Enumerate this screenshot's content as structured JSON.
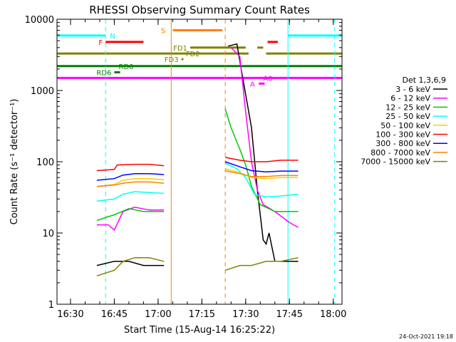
{
  "chart_data": {
    "type": "line",
    "title": "RHESSI Observing Summary Count Rates",
    "xlabel": "Start Time (15-Aug-14 16:25:22)",
    "ylabel": "Count Rate (s⁻¹ detector⁻¹)",
    "xlim": [
      "16:25:22",
      "18:03:00"
    ],
    "ylim": [
      1,
      10000
    ],
    "log_y": true,
    "x_ticks": [
      "16:30",
      "16:45",
      "17:00",
      "17:15",
      "17:30",
      "17:45",
      "18:00"
    ],
    "y_ticks": [
      "1",
      "10",
      "100",
      "1000",
      "10000"
    ],
    "legend_title": "Det 1,3,6,9",
    "legend_position": "right",
    "footer_date": "24-Oct-2021 19:18",
    "series": [
      {
        "name": "3 - 6 keV",
        "color": "#000000",
        "segments": [
          [
            [
              "16:39",
              "3.5"
            ],
            [
              "16:45",
              "4"
            ],
            [
              "16:50",
              "4"
            ],
            [
              "16:55",
              "3.5"
            ],
            [
              "17:02",
              "3.5"
            ]
          ],
          [
            [
              "17:24",
              "4200"
            ],
            [
              "17:27",
              "4500"
            ],
            [
              "17:29",
              "1500"
            ],
            [
              "17:32",
              "300"
            ],
            [
              "17:34",
              "40"
            ],
            [
              "17:36",
              "8"
            ],
            [
              "17:37",
              "7"
            ],
            [
              "17:38",
              "10"
            ],
            [
              "17:40",
              "4"
            ],
            [
              "17:45",
              "4"
            ],
            [
              "17:48",
              "4"
            ]
          ]
        ]
      },
      {
        "name": "6 - 12 keV",
        "color": "#ff00ff",
        "segments": [
          [
            [
              "16:39",
              "13"
            ],
            [
              "16:43",
              "13"
            ],
            [
              "16:45",
              "11"
            ],
            [
              "16:48",
              "20"
            ],
            [
              "16:52",
              "23"
            ],
            [
              "16:57",
              "21"
            ],
            [
              "17:02",
              "21"
            ]
          ],
          [
            [
              "17:25",
              "4000"
            ],
            [
              "17:28",
              "3000"
            ],
            [
              "17:30",
              "500"
            ],
            [
              "17:32",
              "100"
            ],
            [
              "17:34",
              "40"
            ],
            [
              "17:36",
              "25"
            ],
            [
              "17:40",
              "20"
            ],
            [
              "17:45",
              "14"
            ],
            [
              "17:48",
              "12"
            ]
          ]
        ]
      },
      {
        "name": "12 - 25 keV",
        "color": "#00cc00",
        "segments": [
          [
            [
              "16:39",
              "15"
            ],
            [
              "16:43",
              "17"
            ],
            [
              "16:45",
              "18"
            ],
            [
              "16:50",
              "22"
            ],
            [
              "16:55",
              "20"
            ],
            [
              "17:02",
              "20"
            ]
          ],
          [
            [
              "17:23",
              "550"
            ],
            [
              "17:25",
              "300"
            ],
            [
              "17:28",
              "150"
            ],
            [
              "17:30",
              "90"
            ],
            [
              "17:32",
              "45"
            ],
            [
              "17:35",
              "25"
            ],
            [
              "17:40",
              "20"
            ],
            [
              "17:45",
              "20"
            ],
            [
              "17:48",
              "20"
            ]
          ]
        ]
      },
      {
        "name": "25 - 50 keV",
        "color": "#00ffff",
        "segments": [
          [
            [
              "16:39",
              "28"
            ],
            [
              "16:45",
              "30"
            ],
            [
              "16:48",
              "35"
            ],
            [
              "16:52",
              "38"
            ],
            [
              "16:57",
              "37"
            ],
            [
              "17:02",
              "36"
            ]
          ],
          [
            [
              "17:23",
              "95"
            ],
            [
              "17:27",
              "80"
            ],
            [
              "17:30",
              "60"
            ],
            [
              "17:33",
              "35"
            ],
            [
              "17:37",
              "32"
            ],
            [
              "17:42",
              "33"
            ],
            [
              "17:48",
              "35"
            ]
          ]
        ]
      },
      {
        "name": "50 - 100 keV",
        "color": "#ffcc00",
        "segments": [
          [
            [
              "16:39",
              "45"
            ],
            [
              "16:45",
              "48"
            ],
            [
              "16:48",
              "55"
            ],
            [
              "16:52",
              "58"
            ],
            [
              "16:57",
              "58"
            ],
            [
              "17:02",
              "56"
            ]
          ],
          [
            [
              "17:23",
              "80"
            ],
            [
              "17:28",
              "70"
            ],
            [
              "17:32",
              "60"
            ],
            [
              "17:37",
              "58"
            ],
            [
              "17:42",
              "60"
            ],
            [
              "17:48",
              "60"
            ]
          ]
        ]
      },
      {
        "name": "100 - 300 keV",
        "color": "#ff0000",
        "segments": [
          [
            [
              "16:39",
              "75"
            ],
            [
              "16:45",
              "78"
            ],
            [
              "16:46",
              "90"
            ],
            [
              "16:52",
              "92"
            ],
            [
              "16:57",
              "92"
            ],
            [
              "17:02",
              "88"
            ]
          ],
          [
            [
              "17:23",
              "115"
            ],
            [
              "17:28",
              "105"
            ],
            [
              "17:32",
              "100"
            ],
            [
              "17:37",
              "100"
            ],
            [
              "17:42",
              "105"
            ],
            [
              "17:48",
              "105"
            ]
          ]
        ]
      },
      {
        "name": "300 - 800 keV",
        "color": "#0000ff",
        "segments": [
          [
            [
              "16:39",
              "55"
            ],
            [
              "16:45",
              "58"
            ],
            [
              "16:48",
              "65"
            ],
            [
              "16:52",
              "68"
            ],
            [
              "16:57",
              "68"
            ],
            [
              "17:02",
              "66"
            ]
          ],
          [
            [
              "17:23",
              "100"
            ],
            [
              "17:28",
              "85"
            ],
            [
              "17:32",
              "75"
            ],
            [
              "17:37",
              "72"
            ],
            [
              "17:42",
              "74"
            ],
            [
              "17:48",
              "74"
            ]
          ]
        ]
      },
      {
        "name": "800 - 7000 keV",
        "color": "#ff8000",
        "segments": [
          [
            [
              "16:39",
              "45"
            ],
            [
              "16:45",
              "47"
            ],
            [
              "16:48",
              "50"
            ],
            [
              "16:52",
              "52"
            ],
            [
              "16:57",
              "52"
            ],
            [
              "17:02",
              "50"
            ]
          ],
          [
            [
              "17:23",
              "75"
            ],
            [
              "17:28",
              "68"
            ],
            [
              "17:32",
              "62"
            ],
            [
              "17:37",
              "62"
            ],
            [
              "17:42",
              "64"
            ],
            [
              "17:48",
              "64"
            ]
          ]
        ]
      },
      {
        "name": "7000 - 15000 keV",
        "color": "#808000",
        "segments": [
          [
            [
              "16:39",
              "2.5"
            ],
            [
              "16:45",
              "3"
            ],
            [
              "16:48",
              "4"
            ],
            [
              "16:52",
              "4.5"
            ],
            [
              "16:57",
              "4.5"
            ],
            [
              "17:02",
              "4"
            ]
          ],
          [
            [
              "17:23",
              "3"
            ],
            [
              "17:28",
              "3.5"
            ],
            [
              "17:32",
              "3.5"
            ],
            [
              "17:37",
              "4"
            ],
            [
              "17:42",
              "4"
            ],
            [
              "17:48",
              "4.5"
            ]
          ]
        ]
      }
    ],
    "vlines": [
      {
        "t": "16:25:22",
        "color": "#00ffff",
        "style": "solid"
      },
      {
        "t": "16:42:00",
        "color": "#00ffff",
        "style": "dashed"
      },
      {
        "t": "17:04:30",
        "color": "#ff8000",
        "style": "solid"
      },
      {
        "t": "17:23:00",
        "color": "#ff8000",
        "style": "dashed"
      },
      {
        "t": "17:44:30",
        "color": "#00ffff",
        "style": "solid"
      },
      {
        "t": "18:00:30",
        "color": "#00ffff",
        "style": "dashed"
      }
    ],
    "flags": [
      {
        "label": "N",
        "color": "#00ffff",
        "y": 5900,
        "segments": [
          [
            "16:25:22",
            "16:42:00"
          ],
          [
            "17:44:30",
            "18:03:00"
          ]
        ],
        "label_t": "16:43:00",
        "label_side": "right"
      },
      {
        "label": "S",
        "color": "#ff8000",
        "y": 7000,
        "segments": [
          [
            "17:05:00",
            "17:22:00"
          ]
        ],
        "label_t": "17:03:00",
        "label_side": "left"
      },
      {
        "label": "F",
        "color": "#ff0000",
        "y": 4800,
        "segments": [
          [
            "16:42:00",
            "16:55:00"
          ],
          [
            "17:37:30",
            "17:41:00"
          ]
        ],
        "label_t": "16:41:30",
        "label_side": "left"
      },
      {
        "label": "FD1",
        "color": "#808000",
        "y": 4000,
        "segments": [
          [
            "17:11:00",
            "17:30:00"
          ],
          [
            "17:34:00",
            "17:36:00"
          ]
        ],
        "label_t": "17:10:30",
        "label_side": "left"
      },
      {
        "label": "FD2",
        "color": "#808000",
        "y": 3300,
        "segments": [
          [
            "16:25:22",
            "17:31:00"
          ],
          [
            "17:37:00",
            "18:03:00"
          ]
        ],
        "label_t": "17:09:00",
        "label_side": "right"
      },
      {
        "label": "FD3",
        "color": "#808000",
        "y": 2750,
        "segments": [
          [
            "17:08:00",
            "17:08:40"
          ]
        ],
        "label_t": "17:07:30",
        "label_side": "left"
      },
      {
        "label": "RD0",
        "color": "#008000",
        "y": 2200,
        "segments": [
          [
            "16:25:22",
            "18:03:00"
          ]
        ],
        "label_t": "16:46:00",
        "label_side": "right"
      },
      {
        "label": "RD6",
        "color": "#008000",
        "y": 1800,
        "segments": [
          [
            "16:45:00",
            "16:47:00"
          ]
        ],
        "label_t": "16:44:30",
        "label_side": "left"
      },
      {
        "label": "A0",
        "color": "#ff00ff",
        "y": 1500,
        "segments": [
          [
            "16:25:22",
            "18:03:00"
          ]
        ],
        "label_t": "17:35:30",
        "label_side": "right"
      },
      {
        "label": "A",
        "color": "#ff00ff",
        "y": 1250,
        "segments": [
          [
            "17:34:30",
            "17:36:30"
          ]
        ],
        "label_t": "17:31:00",
        "label_side": "right"
      }
    ],
    "grid": false
  }
}
